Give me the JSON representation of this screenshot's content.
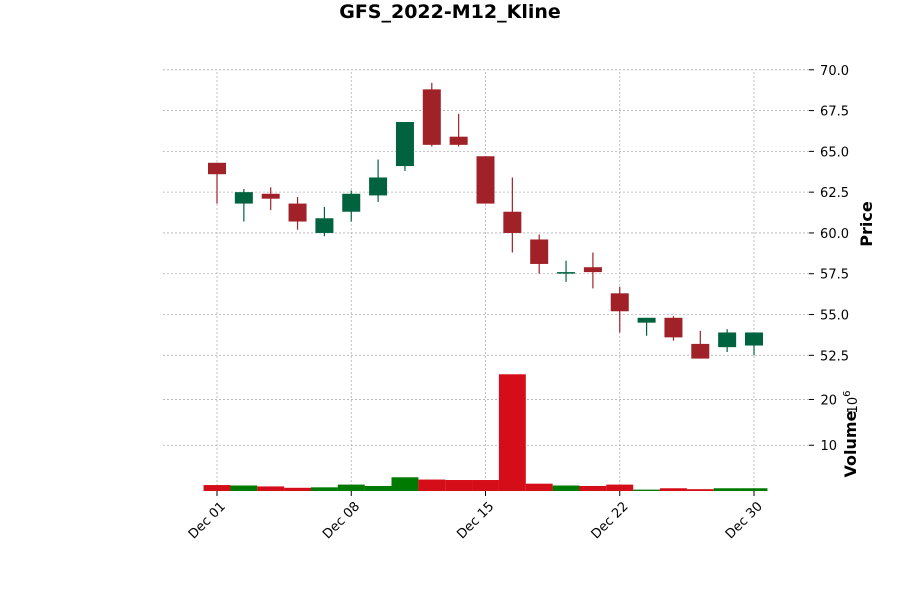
{
  "chart_data": {
    "type": "candlestick",
    "title": "GFS_2022-M12_Kline",
    "price_axis": {
      "label": "Price",
      "ylim": [
        51.6,
        70.6
      ],
      "ticks": [
        52.5,
        55.0,
        57.5,
        60.0,
        62.5,
        65.0,
        67.5,
        70.0
      ],
      "tick_labels": [
        "52.5",
        "55.0",
        "57.5",
        "60.0",
        "62.5",
        "65.0",
        "67.5",
        "70.0"
      ]
    },
    "volume_axis": {
      "label": "Volume",
      "multiplier_label": "10",
      "multiplier_exponent": "6",
      "ylim": [
        0,
        26
      ],
      "ticks": [
        10,
        20
      ],
      "tick_labels": [
        "10",
        "20"
      ]
    },
    "x_axis": {
      "ticks": [
        {
          "index": 0,
          "label": "Dec 01"
        },
        {
          "index": 5,
          "label": "Dec 08"
        },
        {
          "index": 10,
          "label": "Dec 15"
        },
        {
          "index": 15,
          "label": "Dec 22"
        },
        {
          "index": 20,
          "label": "Dec 30"
        }
      ]
    },
    "grid": true,
    "colors": {
      "up": "#006340",
      "down": "#a02128",
      "volume_up": "#007a00",
      "volume_down": "#d50d18"
    },
    "candles": [
      {
        "date": "Dec 01",
        "open": 64.3,
        "high": 64.3,
        "low": 61.8,
        "close": 63.6,
        "volume": 1.3
      },
      {
        "date": "Dec 02",
        "open": 61.8,
        "high": 62.7,
        "low": 60.7,
        "close": 62.5,
        "volume": 1.2
      },
      {
        "date": "Dec 05",
        "open": 62.4,
        "high": 62.8,
        "low": 61.4,
        "close": 62.1,
        "volume": 1.0
      },
      {
        "date": "Dec 06",
        "open": 61.8,
        "high": 62.2,
        "low": 60.2,
        "close": 60.7,
        "volume": 0.7
      },
      {
        "date": "Dec 07",
        "open": 60.0,
        "high": 61.6,
        "low": 59.8,
        "close": 60.9,
        "volume": 0.8
      },
      {
        "date": "Dec 08",
        "open": 61.3,
        "high": 62.6,
        "low": 60.7,
        "close": 62.4,
        "volume": 1.4
      },
      {
        "date": "Dec 09",
        "open": 62.3,
        "high": 64.5,
        "low": 61.9,
        "close": 63.4,
        "volume": 1.1
      },
      {
        "date": "Dec 12",
        "open": 64.1,
        "high": 66.8,
        "low": 63.8,
        "close": 66.8,
        "volume": 3.0
      },
      {
        "date": "Dec 13",
        "open": 68.8,
        "high": 69.2,
        "low": 65.3,
        "close": 65.4,
        "volume": 2.5
      },
      {
        "date": "Dec 14",
        "open": 65.9,
        "high": 67.3,
        "low": 65.3,
        "close": 65.4,
        "volume": 2.4
      },
      {
        "date": "Dec 15",
        "open": 64.7,
        "high": 64.7,
        "low": 61.8,
        "close": 61.8,
        "volume": 2.4
      },
      {
        "date": "Dec 16",
        "open": 61.3,
        "high": 63.4,
        "low": 58.8,
        "close": 60.0,
        "volume": 25.5
      },
      {
        "date": "Dec 19",
        "open": 59.6,
        "high": 59.9,
        "low": 57.5,
        "close": 58.1,
        "volume": 1.6
      },
      {
        "date": "Dec 20",
        "open": 57.6,
        "high": 58.3,
        "low": 57.0,
        "close": 57.6,
        "volume": 1.2
      },
      {
        "date": "Dec 21",
        "open": 57.9,
        "high": 58.8,
        "low": 56.6,
        "close": 57.6,
        "volume": 1.1
      },
      {
        "date": "Dec 22",
        "open": 56.3,
        "high": 56.7,
        "low": 53.9,
        "close": 55.2,
        "volume": 1.4
      },
      {
        "date": "Dec 23",
        "open": 54.5,
        "high": 54.8,
        "low": 53.7,
        "close": 54.8,
        "volume": 0.3
      },
      {
        "date": "Dec 27",
        "open": 54.8,
        "high": 54.9,
        "low": 53.4,
        "close": 53.6,
        "volume": 0.6
      },
      {
        "date": "Dec 28",
        "open": 53.2,
        "high": 54.0,
        "low": 52.3,
        "close": 52.3,
        "volume": 0.4
      },
      {
        "date": "Dec 29",
        "open": 53.0,
        "high": 54.1,
        "low": 52.7,
        "close": 53.9,
        "volume": 0.6
      },
      {
        "date": "Dec 30",
        "open": 53.1,
        "high": 53.9,
        "low": 52.5,
        "close": 53.9,
        "volume": 0.6
      }
    ]
  }
}
